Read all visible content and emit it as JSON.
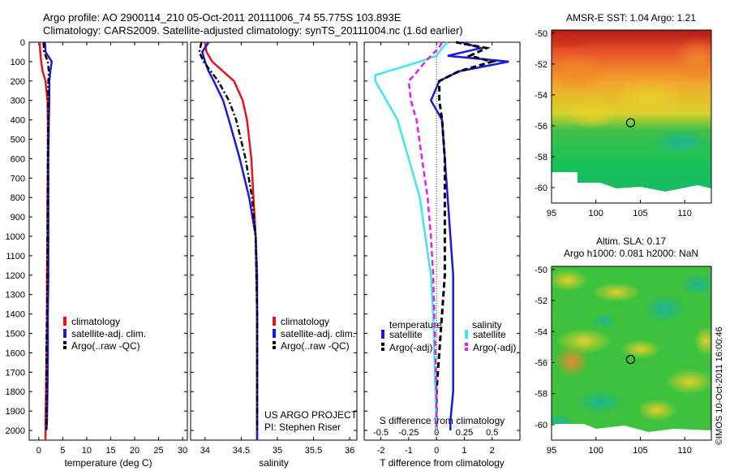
{
  "header": {
    "line1": "Argo profile: AO 2900114_210 05-Oct-2011 20111006_74 55.775S 103.893E",
    "line2": "Climatology: CARS2009. Satellite-adjusted climatology: synTS_20111004.nc (1.6d earlier)"
  },
  "colors": {
    "climatology": "#e8141c",
    "satellite": "#1a1ad8",
    "argo": "#000000",
    "sal_satellite": "#3ce8e8",
    "sal_argo": "#e020e0"
  },
  "credit": "©IMOS 10-Oct-2011 16:00:46",
  "chart_data": [
    {
      "type": "line",
      "xlabel": "temperature (deg C)",
      "ylabel": "",
      "xlim": [
        -2,
        31
      ],
      "ylim": [
        2050,
        0
      ],
      "xticks": [
        0,
        5,
        10,
        15,
        20,
        25,
        30
      ],
      "yticks": [
        0,
        100,
        200,
        300,
        400,
        500,
        600,
        700,
        800,
        900,
        1000,
        1100,
        1200,
        1300,
        1400,
        1500,
        1600,
        1700,
        1800,
        1900,
        2000
      ],
      "legend": [
        "climatology",
        "satellite-adj. clim.",
        "Argo(..raw -QC)"
      ],
      "legend_position": "center",
      "series": [
        {
          "name": "climatology",
          "x": [
            0.2,
            0.3,
            0.5,
            0.8,
            1.4,
            1.8,
            1.9,
            1.9,
            1.8,
            1.8,
            1.7,
            1.7,
            1.6,
            1.5,
            1.4,
            1.4
          ],
          "y": [
            0,
            50,
            100,
            150,
            200,
            300,
            400,
            600,
            800,
            1000,
            1200,
            1400,
            1600,
            1800,
            1950,
            2050
          ]
        },
        {
          "name": "satellite-adj. clim.",
          "x": [
            1.3,
            1.4,
            2.7,
            2.4,
            2.2,
            2.2,
            2.1,
            2.0,
            2.0,
            2.0,
            2.0,
            1.9,
            1.9,
            1.8,
            1.7,
            1.6
          ],
          "y": [
            0,
            50,
            100,
            150,
            200,
            300,
            400,
            600,
            800,
            1000,
            1200,
            1400,
            1600,
            1800,
            1950,
            2000
          ]
        },
        {
          "name": "Argo(..raw -QC)",
          "x": [
            1.0,
            1.1,
            1.9,
            2.1,
            2.0,
            2.0,
            2.0,
            1.9,
            1.9,
            1.8,
            1.8,
            1.7,
            1.6,
            1.6,
            1.6,
            1.6
          ],
          "y": [
            0,
            50,
            100,
            150,
            200,
            300,
            400,
            600,
            800,
            1000,
            1200,
            1400,
            1600,
            1800,
            1950,
            2000
          ]
        }
      ]
    },
    {
      "type": "line",
      "xlabel": "salinity",
      "xlim": [
        33.8,
        36.1
      ],
      "ylim": [
        2050,
        0
      ],
      "xticks": [
        34,
        34.5,
        35,
        35.5,
        36
      ],
      "xtick_labels": [
        "34",
        "34.5",
        "35",
        "35.5",
        "36"
      ],
      "legend": [
        "climatology",
        "satellite-adj. clim.",
        "Argo(..raw -QC)"
      ],
      "legend_position": "center",
      "annotation": [
        "US ARGO PROJECT",
        "PI: Stephen Riser"
      ],
      "series": [
        {
          "name": "climatology",
          "x": [
            34.0,
            34.02,
            34.1,
            34.25,
            34.4,
            34.52,
            34.58,
            34.64,
            34.67,
            34.7,
            34.71,
            34.72,
            34.72,
            34.72,
            34.72,
            34.72
          ],
          "y": [
            0,
            50,
            100,
            150,
            200,
            300,
            400,
            600,
            800,
            1000,
            1200,
            1400,
            1600,
            1800,
            1950,
            2050
          ]
        },
        {
          "name": "satellite-adj. clim.",
          "x": [
            34.05,
            33.96,
            34.0,
            34.05,
            34.12,
            34.25,
            34.33,
            34.48,
            34.61,
            34.7,
            34.72,
            34.72,
            34.72,
            34.72,
            34.72,
            34.72
          ],
          "y": [
            0,
            50,
            100,
            150,
            200,
            300,
            400,
            600,
            800,
            1000,
            1200,
            1400,
            1600,
            1800,
            1950,
            2050
          ]
        },
        {
          "name": "Argo(..raw -QC)",
          "x": [
            33.95,
            33.92,
            33.98,
            34.08,
            34.18,
            34.33,
            34.43,
            34.56,
            34.65,
            34.7,
            34.71,
            34.72,
            34.72,
            34.72,
            34.72,
            34.72
          ],
          "y": [
            0,
            50,
            100,
            150,
            200,
            300,
            400,
            600,
            800,
            1000,
            1200,
            1400,
            1600,
            1800,
            1950,
            2000
          ]
        }
      ]
    },
    {
      "type": "line",
      "xlabel": "T difference from climatology",
      "xlabel_top": "S difference from climatology",
      "xlim": [
        -2.6,
        3.0
      ],
      "ylim": [
        2050,
        0
      ],
      "xticks": [
        -2,
        -1,
        0,
        1,
        2
      ],
      "sal_xticks": [
        -0.5,
        -0.25,
        0,
        0.25,
        0.5
      ],
      "sal_xtick_labels": [
        "-0.5",
        "-0.25",
        "0",
        "0.25",
        "0.5"
      ],
      "legend_headers": [
        "temperature",
        "salinity"
      ],
      "legend": [
        "satellite",
        "Argo(-adj)",
        "satellite",
        "Argo(-adj)"
      ],
      "legend_position": "center",
      "series": [
        {
          "name": "satellite",
          "x": [
            0.9,
            1.6,
            0.4,
            2.6,
            0.8,
            0.1,
            -0.2,
            0.2,
            0.3,
            0.4,
            0.5,
            0.6,
            0.6,
            0.6,
            0.6,
            0.5,
            0.5
          ],
          "y": [
            0,
            30,
            70,
            100,
            150,
            200,
            300,
            400,
            600,
            800,
            1000,
            1200,
            1400,
            1600,
            1800,
            1950,
            2000
          ]
        },
        {
          "name": "Argo(-adj)",
          "x": [
            0.7,
            1.8,
            1.2,
            2.0,
            0.8,
            0.1,
            0.1,
            0.2,
            0.3,
            0.3,
            0.3,
            0.3,
            0.2,
            0.1,
            0.0,
            0.0,
            0.0
          ],
          "y": [
            0,
            30,
            70,
            100,
            150,
            200,
            300,
            400,
            600,
            800,
            1000,
            1200,
            1400,
            1600,
            1800,
            1950,
            2000
          ]
        },
        {
          "name": "satellite",
          "x": [
            0.1,
            0.05,
            0.0,
            -0.15,
            -0.55,
            -0.55,
            -0.45,
            -0.35,
            -0.25,
            -0.15,
            -0.1,
            -0.05,
            -0.03,
            -0.02,
            -0.01,
            0.0
          ],
          "y": [
            0,
            30,
            70,
            100,
            170,
            200,
            300,
            400,
            600,
            800,
            1000,
            1200,
            1400,
            1600,
            1800,
            2000
          ]
        },
        {
          "name": "Argo(-adj)",
          "x": [
            0.05,
            0.02,
            -0.05,
            -0.1,
            -0.2,
            -0.25,
            -0.23,
            -0.18,
            -0.13,
            -0.08,
            -0.05,
            -0.03,
            -0.02,
            -0.01,
            0.0,
            0.0
          ],
          "y": [
            0,
            30,
            70,
            100,
            170,
            200,
            300,
            400,
            600,
            800,
            1000,
            1200,
            1400,
            1600,
            1800,
            2000
          ]
        }
      ]
    },
    {
      "type": "heatmap",
      "title": "AMSR-E SST: 1.04 Argo: 1.21",
      "xlim": [
        95,
        113
      ],
      "ylim": [
        -61,
        -49.8
      ],
      "xticks": [
        95,
        100,
        105,
        110
      ],
      "yticks": [
        -50,
        -52,
        -54,
        -56,
        -58,
        -60
      ],
      "marker": {
        "x": 103.9,
        "y": -55.8
      }
    },
    {
      "type": "heatmap",
      "title": "Altim. SLA: 0.17",
      "subtitle": "Argo h1000: 0.081 h2000: NaN",
      "xlim": [
        95,
        113
      ],
      "ylim": [
        -61,
        -49.8
      ],
      "xticks": [
        95,
        100,
        105,
        110
      ],
      "yticks": [
        -50,
        -52,
        -54,
        -56,
        -58,
        -60
      ],
      "marker": {
        "x": 103.9,
        "y": -55.8
      }
    }
  ]
}
